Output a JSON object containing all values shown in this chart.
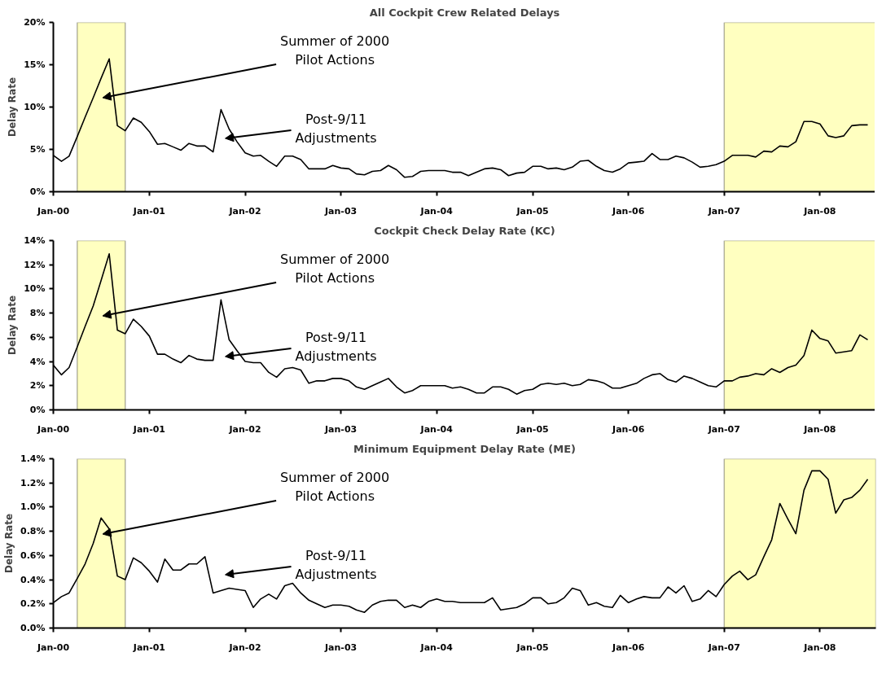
{
  "chart_data": [
    {
      "type": "line",
      "title": "All Cockpit Crew Related Delays",
      "ylabel": "Delay Rate",
      "color": "#000000",
      "x": [
        "2000-01",
        "2000-02",
        "2000-03",
        "2000-04",
        "2000-05",
        "2000-06",
        "2000-07",
        "2000-08",
        "2000-09",
        "2000-10",
        "2000-11",
        "2000-12",
        "2001-01",
        "2001-02",
        "2001-03",
        "2001-04",
        "2001-05",
        "2001-06",
        "2001-07",
        "2001-08",
        "2001-09",
        "2001-10",
        "2001-11",
        "2001-12",
        "2002-01",
        "2002-02",
        "2002-03",
        "2002-04",
        "2002-05",
        "2002-06",
        "2002-07",
        "2002-08",
        "2002-09",
        "2002-10",
        "2002-11",
        "2002-12",
        "2003-01",
        "2003-02",
        "2003-03",
        "2003-04",
        "2003-05",
        "2003-06",
        "2003-07",
        "2003-08",
        "2003-09",
        "2003-10",
        "2003-11",
        "2003-12",
        "2004-01",
        "2004-02",
        "2004-03",
        "2004-04",
        "2004-05",
        "2004-06",
        "2004-07",
        "2004-08",
        "2004-09",
        "2004-10",
        "2004-11",
        "2004-12",
        "2005-01",
        "2005-02",
        "2005-03",
        "2005-04",
        "2005-05",
        "2005-06",
        "2005-07",
        "2005-08",
        "2005-09",
        "2005-10",
        "2005-11",
        "2005-12",
        "2006-01",
        "2006-02",
        "2006-03",
        "2006-04",
        "2006-05",
        "2006-06",
        "2006-07",
        "2006-08",
        "2006-09",
        "2006-10",
        "2006-11",
        "2006-12",
        "2007-01",
        "2007-02",
        "2007-03",
        "2007-04",
        "2007-05",
        "2007-06",
        "2007-07",
        "2007-08",
        "2007-09",
        "2007-10",
        "2007-11",
        "2007-12",
        "2008-01",
        "2008-02",
        "2008-03",
        "2008-04",
        "2008-05",
        "2008-06",
        "2008-07"
      ],
      "values": [
        4.3,
        3.6,
        4.2,
        6.5,
        8.8,
        11.1,
        13.4,
        15.7,
        7.8,
        7.2,
        8.7,
        8.2,
        7.1,
        5.6,
        5.7,
        5.3,
        4.9,
        5.7,
        5.4,
        5.4,
        4.7,
        9.7,
        7.4,
        5.9,
        4.6,
        4.2,
        4.3,
        3.6,
        3.0,
        4.2,
        4.2,
        3.8,
        2.7,
        2.7,
        2.7,
        3.1,
        2.8,
        2.7,
        2.1,
        2.0,
        2.4,
        2.5,
        3.1,
        2.6,
        1.7,
        1.8,
        2.4,
        2.5,
        2.5,
        2.5,
        2.3,
        2.3,
        1.9,
        2.3,
        2.7,
        2.8,
        2.6,
        1.9,
        2.2,
        2.3,
        3.0,
        3.0,
        2.7,
        2.8,
        2.6,
        2.9,
        3.6,
        3.7,
        3.0,
        2.5,
        2.3,
        2.7,
        3.4,
        3.5,
        3.6,
        4.5,
        3.8,
        3.8,
        4.2,
        4.0,
        3.5,
        2.9,
        3.0,
        3.2,
        3.6,
        4.3,
        4.3,
        4.3,
        4.1,
        4.8,
        4.7,
        5.4,
        5.3,
        5.9,
        8.3,
        8.3,
        8.0,
        6.6,
        6.4,
        6.6,
        7.8,
        7.9,
        7.9
      ],
      "xlim": [
        "2000-01",
        "2008-08"
      ],
      "xticks": [
        {
          "value": "2000-01",
          "label": "Jan-00"
        },
        {
          "value": "2001-01",
          "label": "Jan-01"
        },
        {
          "value": "2002-01",
          "label": "Jan-02"
        },
        {
          "value": "2003-01",
          "label": "Jan-03"
        },
        {
          "value": "2004-01",
          "label": "Jan-04"
        },
        {
          "value": "2005-01",
          "label": "Jan-05"
        },
        {
          "value": "2006-01",
          "label": "Jan-06"
        },
        {
          "value": "2007-01",
          "label": "Jan-07"
        },
        {
          "value": "2008-01",
          "label": "Jan-08"
        }
      ],
      "ylim": [
        0,
        20
      ],
      "yticks": [
        {
          "value": 0,
          "label": "0%"
        },
        {
          "value": 5,
          "label": "5%"
        },
        {
          "value": 10,
          "label": "10%"
        },
        {
          "value": 15,
          "label": "15%"
        },
        {
          "value": 20,
          "label": "20%"
        }
      ],
      "bands": [
        {
          "axis": "x",
          "from": "2000-04",
          "to": "2000-10",
          "color": "#ffffc0"
        },
        {
          "axis": "x",
          "from": "2007-01",
          "to": "2008-08",
          "color": "#ffffc0"
        }
      ],
      "annotations": [
        "Summer of 2000\nPilot Actions",
        "Post-9/11\nAdjustments"
      ]
    },
    {
      "type": "line",
      "title": "Cockpit Check Delay Rate (KC)",
      "ylabel": "Delay Rate",
      "color": "#000000",
      "x": [
        "2000-01",
        "2000-02",
        "2000-03",
        "2000-04",
        "2000-05",
        "2000-06",
        "2000-07",
        "2000-08",
        "2000-09",
        "2000-10",
        "2000-11",
        "2000-12",
        "2001-01",
        "2001-02",
        "2001-03",
        "2001-04",
        "2001-05",
        "2001-06",
        "2001-07",
        "2001-08",
        "2001-09",
        "2001-10",
        "2001-11",
        "2001-12",
        "2002-01",
        "2002-02",
        "2002-03",
        "2002-04",
        "2002-05",
        "2002-06",
        "2002-07",
        "2002-08",
        "2002-09",
        "2002-10",
        "2002-11",
        "2002-12",
        "2003-01",
        "2003-02",
        "2003-03",
        "2003-04",
        "2003-05",
        "2003-06",
        "2003-07",
        "2003-08",
        "2003-09",
        "2003-10",
        "2003-11",
        "2003-12",
        "2004-01",
        "2004-02",
        "2004-03",
        "2004-04",
        "2004-05",
        "2004-06",
        "2004-07",
        "2004-08",
        "2004-09",
        "2004-10",
        "2004-11",
        "2004-12",
        "2005-01",
        "2005-02",
        "2005-03",
        "2005-04",
        "2005-05",
        "2005-06",
        "2005-07",
        "2005-08",
        "2005-09",
        "2005-10",
        "2005-11",
        "2005-12",
        "2006-01",
        "2006-02",
        "2006-03",
        "2006-04",
        "2006-05",
        "2006-06",
        "2006-07",
        "2006-08",
        "2006-09",
        "2006-10",
        "2006-11",
        "2006-12",
        "2007-01",
        "2007-02",
        "2007-03",
        "2007-04",
        "2007-05",
        "2007-06",
        "2007-07",
        "2007-08",
        "2007-09",
        "2007-10",
        "2007-11",
        "2007-12",
        "2008-01",
        "2008-02",
        "2008-03",
        "2008-04",
        "2008-05",
        "2008-06",
        "2008-07"
      ],
      "values": [
        3.7,
        2.9,
        3.5,
        5.2,
        6.9,
        8.6,
        10.7,
        12.9,
        6.6,
        6.3,
        7.5,
        6.9,
        6.1,
        4.6,
        4.6,
        4.2,
        3.9,
        4.5,
        4.2,
        4.1,
        4.1,
        9.1,
        5.8,
        4.9,
        4.0,
        3.9,
        3.9,
        3.1,
        2.7,
        3.4,
        3.5,
        3.3,
        2.2,
        2.4,
        2.4,
        2.6,
        2.6,
        2.4,
        1.9,
        1.7,
        2.0,
        2.3,
        2.6,
        1.9,
        1.4,
        1.6,
        2.0,
        2.0,
        2.0,
        2.0,
        1.8,
        1.9,
        1.7,
        1.4,
        1.4,
        1.9,
        1.9,
        1.7,
        1.3,
        1.6,
        1.7,
        2.1,
        2.2,
        2.1,
        2.2,
        2.0,
        2.1,
        2.5,
        2.4,
        2.2,
        1.8,
        1.8,
        2.0,
        2.2,
        2.6,
        2.9,
        3.0,
        2.5,
        2.3,
        2.8,
        2.6,
        2.3,
        2.0,
        1.9,
        2.4,
        2.4,
        2.7,
        2.8,
        3.0,
        2.9,
        3.4,
        3.1,
        3.5,
        3.7,
        4.5,
        6.6,
        5.9,
        5.7,
        4.7,
        4.8,
        4.9,
        6.2,
        5.8
      ],
      "xlim": [
        "2000-01",
        "2008-08"
      ],
      "xticks": [
        {
          "value": "2000-01",
          "label": "Jan-00"
        },
        {
          "value": "2001-01",
          "label": "Jan-01"
        },
        {
          "value": "2002-01",
          "label": "Jan-02"
        },
        {
          "value": "2003-01",
          "label": "Jan-03"
        },
        {
          "value": "2004-01",
          "label": "Jan-04"
        },
        {
          "value": "2005-01",
          "label": "Jan-05"
        },
        {
          "value": "2006-01",
          "label": "Jan-06"
        },
        {
          "value": "2007-01",
          "label": "Jan-07"
        },
        {
          "value": "2008-01",
          "label": "Jan-08"
        }
      ],
      "ylim": [
        0,
        14
      ],
      "yticks": [
        {
          "value": 0,
          "label": "0%"
        },
        {
          "value": 2,
          "label": "2%"
        },
        {
          "value": 4,
          "label": "4%"
        },
        {
          "value": 6,
          "label": "6%"
        },
        {
          "value": 8,
          "label": "8%"
        },
        {
          "value": 10,
          "label": "10%"
        },
        {
          "value": 12,
          "label": "12%"
        },
        {
          "value": 14,
          "label": "14%"
        }
      ],
      "bands": [
        {
          "axis": "x",
          "from": "2000-04",
          "to": "2000-10",
          "color": "#ffffc0"
        },
        {
          "axis": "x",
          "from": "2007-01",
          "to": "2008-08",
          "color": "#ffffc0"
        }
      ],
      "annotations": [
        "Summer of 2000\nPilot Actions",
        "Post-9/11\nAdjustments"
      ]
    },
    {
      "type": "line",
      "title": "Minimum Equipment Delay Rate (ME)",
      "ylabel": "Delay Rate",
      "color": "#000000",
      "x": [
        "2000-01",
        "2000-02",
        "2000-03",
        "2000-04",
        "2000-05",
        "2000-06",
        "2000-07",
        "2000-08",
        "2000-09",
        "2000-10",
        "2000-11",
        "2000-12",
        "2001-01",
        "2001-02",
        "2001-03",
        "2001-04",
        "2001-05",
        "2001-06",
        "2001-07",
        "2001-08",
        "2001-09",
        "2001-10",
        "2001-11",
        "2001-12",
        "2002-01",
        "2002-02",
        "2002-03",
        "2002-04",
        "2002-05",
        "2002-06",
        "2002-07",
        "2002-08",
        "2002-09",
        "2002-10",
        "2002-11",
        "2002-12",
        "2003-01",
        "2003-02",
        "2003-03",
        "2003-04",
        "2003-05",
        "2003-06",
        "2003-07",
        "2003-08",
        "2003-09",
        "2003-10",
        "2003-11",
        "2003-12",
        "2004-01",
        "2004-02",
        "2004-03",
        "2004-04",
        "2004-05",
        "2004-06",
        "2004-07",
        "2004-08",
        "2004-09",
        "2004-10",
        "2004-11",
        "2004-12",
        "2005-01",
        "2005-02",
        "2005-03",
        "2005-04",
        "2005-05",
        "2005-06",
        "2005-07",
        "2005-08",
        "2005-09",
        "2005-10",
        "2005-11",
        "2005-12",
        "2006-01",
        "2006-02",
        "2006-03",
        "2006-04",
        "2006-05",
        "2006-06",
        "2006-07",
        "2006-08",
        "2006-09",
        "2006-10",
        "2006-11",
        "2006-12",
        "2007-01",
        "2007-02",
        "2007-03",
        "2007-04",
        "2007-05",
        "2007-06",
        "2007-07",
        "2007-08",
        "2007-09",
        "2007-10",
        "2007-11",
        "2007-12",
        "2008-01",
        "2008-02",
        "2008-03",
        "2008-04",
        "2008-05",
        "2008-06",
        "2008-07"
      ],
      "values": [
        0.21,
        0.26,
        0.29,
        0.41,
        0.53,
        0.7,
        0.91,
        0.82,
        0.43,
        0.4,
        0.58,
        0.54,
        0.47,
        0.38,
        0.57,
        0.48,
        0.48,
        0.53,
        0.53,
        0.59,
        0.29,
        0.31,
        0.33,
        0.32,
        0.31,
        0.17,
        0.24,
        0.28,
        0.24,
        0.35,
        0.37,
        0.29,
        0.23,
        0.2,
        0.17,
        0.19,
        0.19,
        0.18,
        0.15,
        0.13,
        0.19,
        0.22,
        0.23,
        0.23,
        0.17,
        0.19,
        0.17,
        0.22,
        0.24,
        0.22,
        0.22,
        0.21,
        0.21,
        0.21,
        0.21,
        0.25,
        0.15,
        0.16,
        0.17,
        0.2,
        0.25,
        0.25,
        0.2,
        0.21,
        0.25,
        0.33,
        0.31,
        0.19,
        0.21,
        0.18,
        0.17,
        0.27,
        0.21,
        0.24,
        0.26,
        0.25,
        0.25,
        0.34,
        0.29,
        0.35,
        0.22,
        0.24,
        0.31,
        0.26,
        0.36,
        0.43,
        0.47,
        0.4,
        0.44,
        0.59,
        0.73,
        1.03,
        0.9,
        0.78,
        1.14,
        1.3,
        1.3,
        1.23,
        0.95,
        1.06,
        1.08,
        1.14,
        1.23
      ],
      "xlim": [
        "2000-01",
        "2008-08"
      ],
      "xticks": [
        {
          "value": "2000-01",
          "label": "Jan-00"
        },
        {
          "value": "2001-01",
          "label": "Jan-01"
        },
        {
          "value": "2002-01",
          "label": "Jan-02"
        },
        {
          "value": "2003-01",
          "label": "Jan-03"
        },
        {
          "value": "2004-01",
          "label": "Jan-04"
        },
        {
          "value": "2005-01",
          "label": "Jan-05"
        },
        {
          "value": "2006-01",
          "label": "Jan-06"
        },
        {
          "value": "2007-01",
          "label": "Jan-07"
        },
        {
          "value": "2008-01",
          "label": "Jan-08"
        }
      ],
      "ylim": [
        0,
        1.4
      ],
      "yticks": [
        {
          "value": 0,
          "label": "0.0%"
        },
        {
          "value": 0.2,
          "label": "0.2%"
        },
        {
          "value": 0.4,
          "label": "0.4%"
        },
        {
          "value": 0.6,
          "label": "0.6%"
        },
        {
          "value": 0.8,
          "label": "0.8%"
        },
        {
          "value": 1.0,
          "label": "1.0%"
        },
        {
          "value": 1.2,
          "label": "1.2%"
        },
        {
          "value": 1.4,
          "label": "1.4%"
        }
      ],
      "bands": [
        {
          "axis": "x",
          "from": "2000-04",
          "to": "2000-10",
          "color": "#ffffc0"
        },
        {
          "axis": "x",
          "from": "2007-01",
          "to": "2008-08",
          "color": "#ffffc0"
        }
      ],
      "annotations": [
        "Summer of 2000\nPilot Actions",
        "Post-9/11\nAdjustments"
      ]
    }
  ]
}
